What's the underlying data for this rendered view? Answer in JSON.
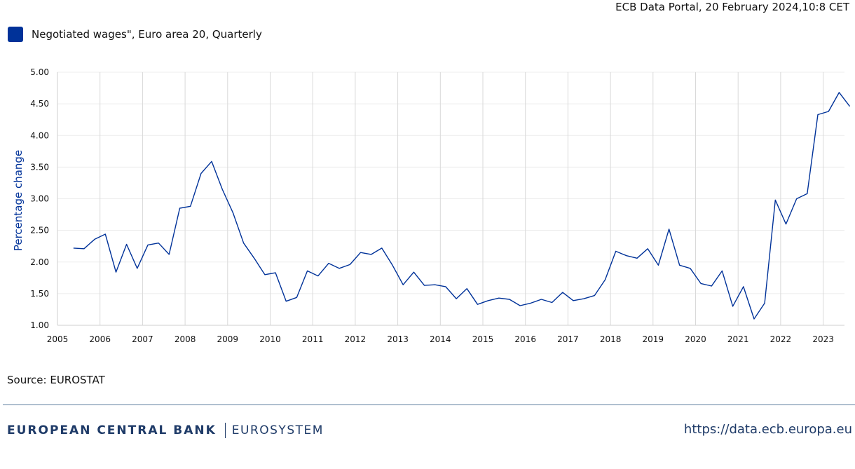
{
  "header": {
    "timestamp": "ECB Data Portal, 20 February 2024,10:8 CET"
  },
  "legend": {
    "label": "Negotiated wages\", Euro area 20, Quarterly",
    "color": "#003299"
  },
  "chart_data": {
    "type": "line",
    "ylabel": "Percentage change",
    "xlabel": "",
    "ylim": [
      1.0,
      5.0
    ],
    "yticks": [
      "1.00",
      "1.50",
      "2.00",
      "2.50",
      "3.00",
      "3.50",
      "4.00",
      "4.50",
      "5.00"
    ],
    "xticks": [
      "2005",
      "2006",
      "2007",
      "2008",
      "2009",
      "2010",
      "2011",
      "2012",
      "2013",
      "2014",
      "2015",
      "2016",
      "2017",
      "2018",
      "2019",
      "2020",
      "2021",
      "2022",
      "2023"
    ],
    "grid": {
      "vertical": true,
      "horizontal": true
    },
    "series": [
      {
        "name": "Negotiated wages\", Euro area 20, Quarterly",
        "color": "#003299",
        "start": "2005-Q2",
        "values": [
          2.22,
          2.21,
          2.36,
          2.44,
          1.84,
          2.28,
          1.9,
          2.27,
          2.3,
          2.12,
          2.85,
          2.88,
          3.4,
          3.59,
          3.15,
          2.78,
          2.3,
          2.06,
          1.8,
          1.83,
          1.38,
          1.44,
          1.86,
          1.78,
          1.98,
          1.9,
          1.96,
          2.15,
          2.12,
          2.22,
          1.95,
          1.64,
          1.84,
          1.63,
          1.64,
          1.61,
          1.42,
          1.58,
          1.33,
          1.39,
          1.43,
          1.41,
          1.31,
          1.35,
          1.41,
          1.36,
          1.52,
          1.39,
          1.42,
          1.47,
          1.72,
          2.17,
          2.1,
          2.06,
          2.21,
          1.95,
          2.52,
          1.95,
          1.9,
          1.66,
          1.62,
          1.86,
          1.3,
          1.61,
          1.1,
          1.35,
          2.98,
          2.6,
          3.0,
          3.08,
          4.33,
          4.38,
          4.68,
          4.46
        ]
      }
    ]
  },
  "footer": {
    "source": "Source: EUROSTAT",
    "brand_name": "EUROPEAN CENTRAL BANK",
    "brand_sub": "EUROSYSTEM",
    "url": "https://data.ecb.europa.eu"
  }
}
